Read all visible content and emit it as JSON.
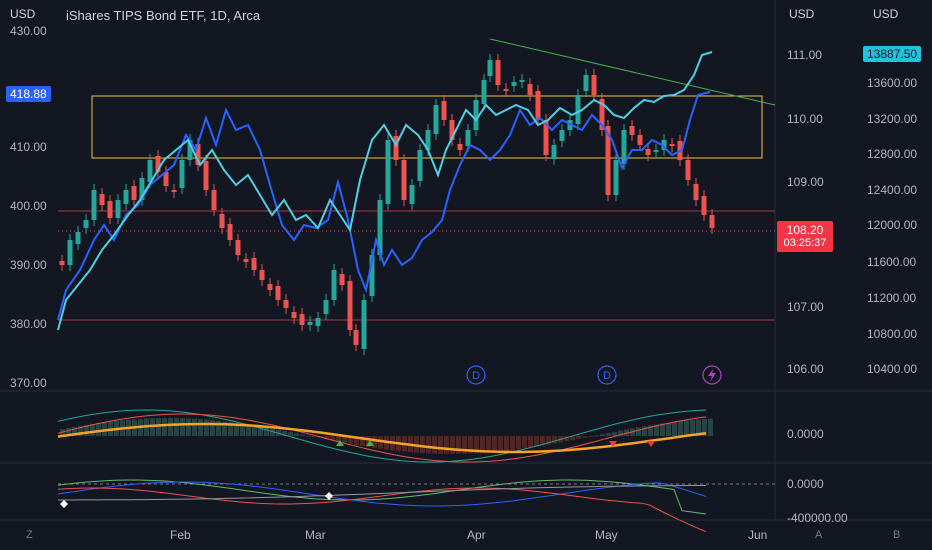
{
  "header": {
    "left_currency": "USD",
    "mid_currency": "USD",
    "right_currency": "USD",
    "title": "iShares TIPS Bond ETF, 1D, Arca"
  },
  "left_axis": {
    "ticks": [
      "430.00",
      "410.00",
      "400.00",
      "390.00",
      "380.00",
      "370.00"
    ],
    "badge": "418.88",
    "badge_color": "#2962ff"
  },
  "mid_axis": {
    "ticks": [
      "111.00",
      "110.00",
      "109.00",
      "107.00",
      "106.00"
    ],
    "price_tag": "108.20",
    "countdown": "03:25:37",
    "tag_color": "#f23645"
  },
  "right_axis": {
    "ticks": [
      "13600.00",
      "13200.00",
      "12800.00",
      "12400.00",
      "12000.00",
      "11600.00",
      "11200.00",
      "10800.00",
      "10400.00"
    ],
    "badge": "13887.50",
    "badge_color": "#22c1dd"
  },
  "osc1": {
    "tick": "0.0000"
  },
  "osc2": {
    "ticks": [
      "0.0000",
      "-400000.00"
    ]
  },
  "time_axis": {
    "labels": [
      "Feb",
      "Mar",
      "Apr",
      "May",
      "Jun"
    ]
  },
  "markers": {
    "dividend_label": "D"
  },
  "bottom": {
    "left_btn": "Z",
    "log_btn": "A",
    "base_btn": "B"
  },
  "colors": {
    "up": "#26a69a",
    "down": "#ef5350",
    "blue_line": "#2962ff",
    "cyan_line": "#4dd0e1",
    "trend": "#4caf50",
    "zone": "#f0c040",
    "sma": "#f7a325"
  }
}
